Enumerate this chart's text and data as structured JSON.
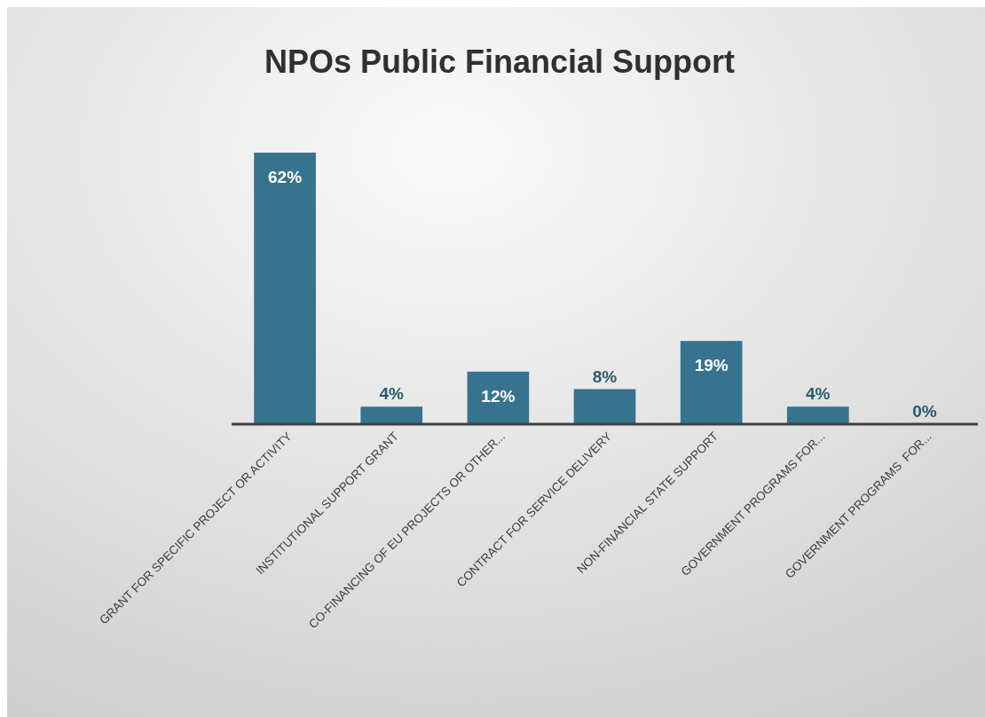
{
  "chart_data": {
    "type": "bar",
    "title": "NPOs Public Financial Support",
    "categories": [
      "GRANT FOR SPECIFIC PROJECT OR ACTIVITY",
      "INSTITUTIONAL SUPPORT GRANT",
      "CO-FINANCING OF EU PROJECTS OR OTHER...",
      "CONTRACT FOR SERVICE DELIVERY",
      "NON-FINANCIAL STATE SUPPORT",
      "GOVERNMENT PROGRAMS FOR...",
      "GOVERNMENT PROGRAMS  FOR..."
    ],
    "values": [
      62,
      4,
      12,
      8,
      19,
      4,
      0
    ],
    "value_labels": [
      "62%",
      "4%",
      "12%",
      "8%",
      "19%",
      "4%",
      "0%"
    ],
    "color": "#37738f"
  }
}
